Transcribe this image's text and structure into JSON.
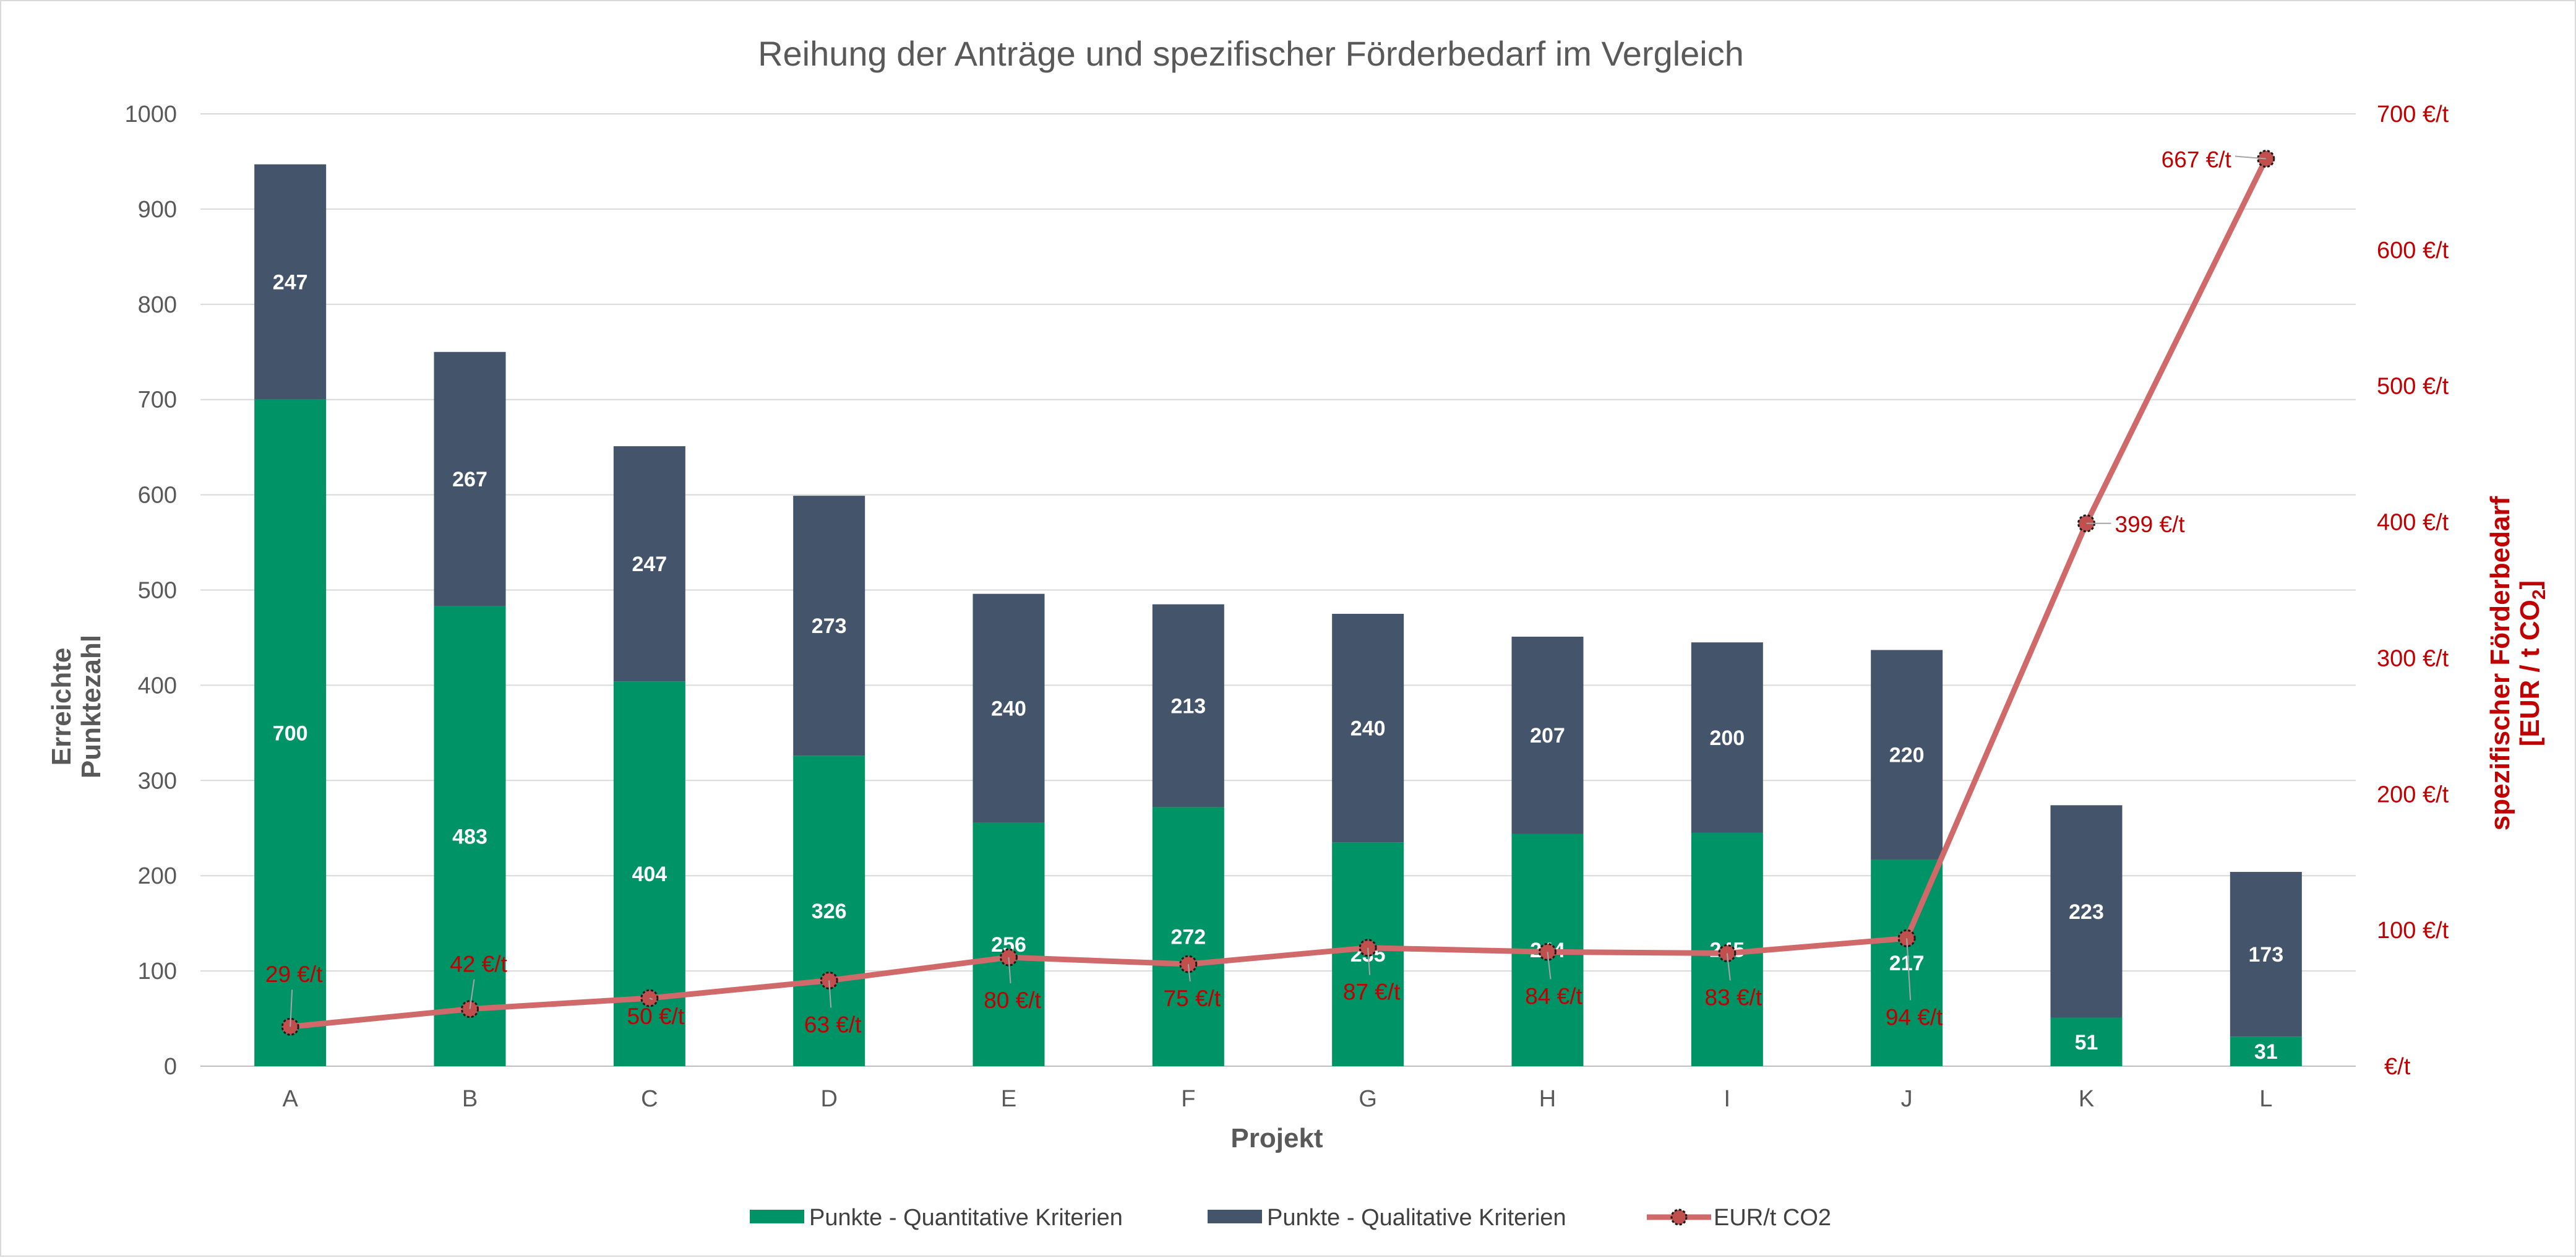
{
  "chart_data": {
    "type": "bar",
    "stacked": true,
    "title": "Reihung der Anträge und spezifischer Förderbedarf im Vergleich",
    "xlabel": "Projekt",
    "ylabel_lines": [
      "Erreichte",
      "Punktezahl"
    ],
    "y2label_line1": "spezifischer Förderbedarf",
    "y2label_line2": "[EUR / t CO",
    "y2label_sub": "2",
    "y2label_end": "]",
    "ylim": [
      0,
      1000
    ],
    "y_ticks": [
      "0",
      "100",
      "200",
      "300",
      "400",
      "500",
      "600",
      "700",
      "800",
      "900",
      "1000"
    ],
    "y2lim": [
      0,
      700
    ],
    "y2_ticks": [
      "€/t",
      "100 €/t",
      "200 €/t",
      "300 €/t",
      "400 €/t",
      "500 €/t",
      "600 €/t",
      "700 €/t"
    ],
    "categories": [
      "A",
      "B",
      "C",
      "D",
      "E",
      "F",
      "G",
      "H",
      "I",
      "J",
      "K",
      "L"
    ],
    "series": [
      {
        "name": "Punkte - Quantitative Kriterien",
        "type": "bar",
        "color": "#009366",
        "values": [
          700,
          483,
          404,
          326,
          256,
          272,
          235,
          244,
          245,
          217,
          51,
          31
        ]
      },
      {
        "name": "Punkte - Qualitative Kriterien",
        "type": "bar",
        "color": "#44546a",
        "values": [
          247,
          267,
          247,
          273,
          240,
          213,
          240,
          207,
          200,
          220,
          223,
          173
        ]
      },
      {
        "name": "EUR/t CO2",
        "type": "line",
        "axis": "secondary",
        "color": "#d06a6a",
        "values": [
          29,
          42,
          50,
          63,
          80,
          75,
          87,
          84,
          83,
          94,
          399,
          667
        ],
        "labels": [
          "29 €/t",
          "42 €/t",
          "50 €/t",
          "63 €/t",
          "80 €/t",
          "75 €/t",
          "87 €/t",
          "84 €/t",
          "83 €/t",
          "94 €/t",
          "399 €/t",
          "667 €/t"
        ]
      }
    ],
    "grid": true,
    "legend_position": "bottom"
  }
}
